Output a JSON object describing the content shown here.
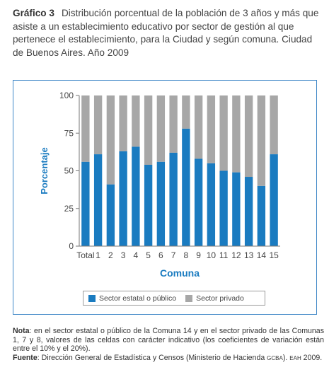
{
  "header": {
    "label": "Gráfico 3",
    "text": "Distribución porcentual de la población de 3 años y más que asiste a un establecimiento educativo  por sector de gestión al que pertenece el establecimiento, para la Ciudad y según comuna. Ciudad de Buenos Aires. Año 2009"
  },
  "chart_data": {
    "type": "bar",
    "stacked": true,
    "xlabel": "Comuna",
    "ylabel": "Porcentaje",
    "ylim": [
      0,
      100
    ],
    "yticks": [
      0,
      25,
      50,
      75,
      100
    ],
    "grid": false,
    "legend_position": "bottom",
    "categories": [
      "Total",
      "1",
      "2",
      "3",
      "4",
      "5",
      "6",
      "7",
      "8",
      "9",
      "10",
      "11",
      "12",
      "13",
      "14",
      "15"
    ],
    "series": [
      {
        "name": "Sector estatal o público",
        "color": "#1a7bc0",
        "values": [
          56,
          61,
          41,
          63,
          66,
          54,
          56,
          62,
          78,
          58,
          55,
          50,
          49,
          46,
          40,
          61
        ]
      },
      {
        "name": "Sector privado",
        "color": "#a7a7a7",
        "values": [
          44,
          39,
          59,
          37,
          34,
          46,
          44,
          38,
          22,
          42,
          45,
          50,
          51,
          54,
          60,
          39
        ]
      }
    ]
  },
  "notes": {
    "nota_label": "Nota",
    "nota_text": ": en el sector estatal o público de la Comuna 14 y en el sector privado de las Comunas 1, 7 y 8, valores de las celdas con carácter indicativo (los coeficientes de variación están entre el 10% y el 20%).",
    "fuente_label": "Fuente",
    "fuente_text": ": Dirección General de Estadística y Censos (Ministerio de Hacienda ",
    "fuente_gcba": "GCBA",
    "fuente_mid": "). ",
    "fuente_eah": "EAH",
    "fuente_end": " 2009."
  }
}
